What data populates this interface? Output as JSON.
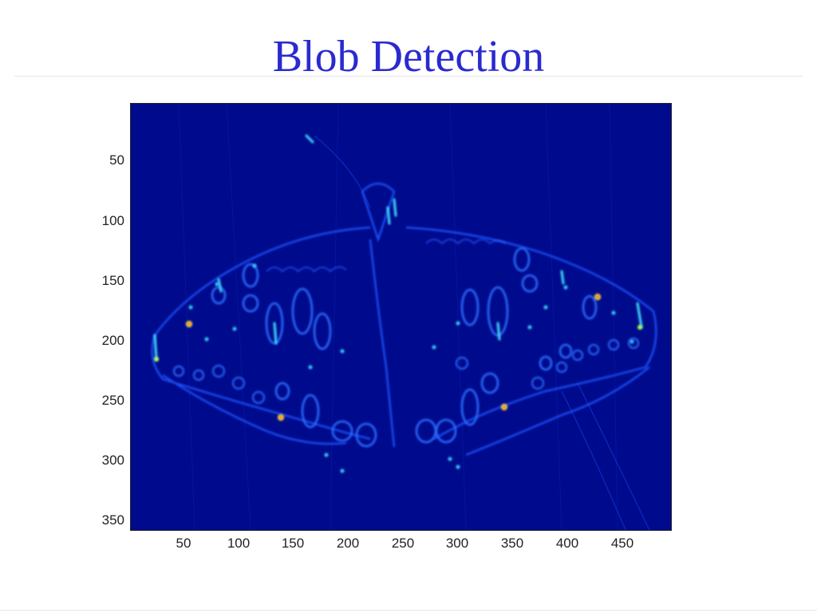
{
  "slide": {
    "title": "Blob Detection"
  },
  "figure": {
    "image_subject": "butterfly blob-detection response map",
    "colormap": "jet",
    "background_color": "#000a8c",
    "axes": {
      "x_ticks": [
        "50",
        "100",
        "150",
        "200",
        "250",
        "300",
        "350",
        "400",
        "450"
      ],
      "y_ticks": [
        "50",
        "100",
        "150",
        "200",
        "250",
        "300",
        "350"
      ],
      "x_range": [
        0,
        492
      ],
      "y_range": [
        0,
        357
      ]
    }
  }
}
